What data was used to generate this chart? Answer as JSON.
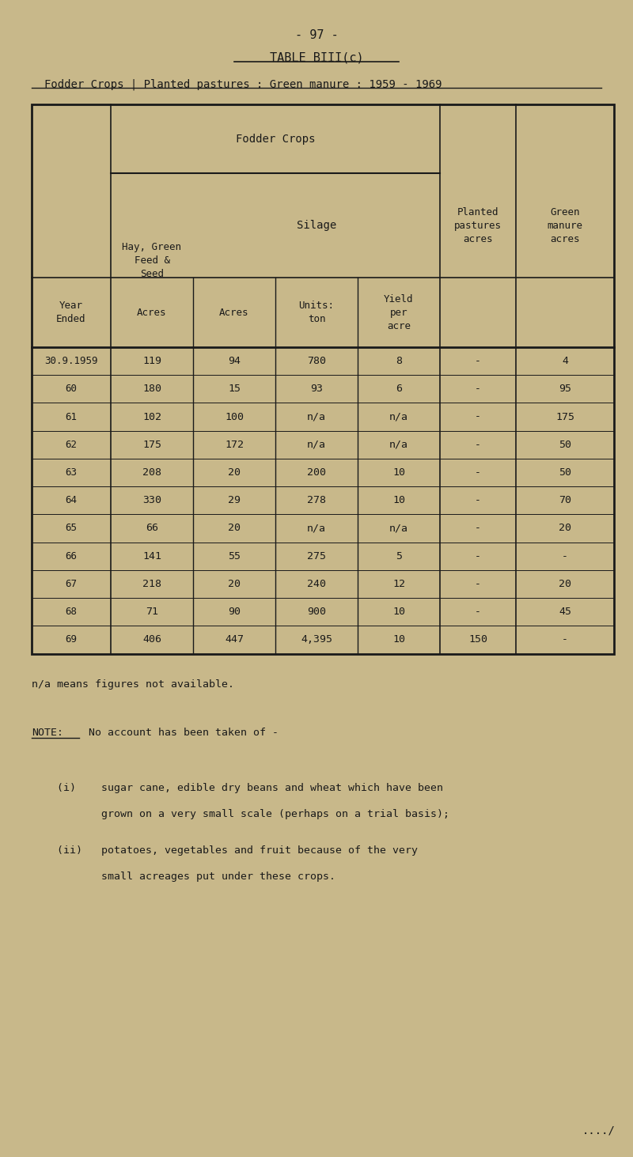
{
  "page_number": "- 97 -",
  "table_title": "TABLE BIII(c)",
  "subtitle": "Fodder Crops | Planted pastures : Green manure : 1959 - 1969",
  "bg_color": "#c8b88a",
  "text_color": "#1a1a1a",
  "rows": [
    [
      "30.9.1959",
      "119",
      "94",
      "780",
      "8",
      "-",
      "4"
    ],
    [
      "60",
      "180",
      "15",
      "93",
      "6",
      "-",
      "95"
    ],
    [
      "61",
      "102",
      "100",
      "n/a",
      "n/a",
      "-",
      "175"
    ],
    [
      "62",
      "175",
      "172",
      "n/a",
      "n/a",
      "-",
      "50"
    ],
    [
      "63",
      "208",
      "20",
      "200",
      "10",
      "-",
      "50"
    ],
    [
      "64",
      "330",
      "29",
      "278",
      "10",
      "-",
      "70"
    ],
    [
      "65",
      "66",
      "20",
      "n/a",
      "n/a",
      "-",
      "20"
    ],
    [
      "66",
      "141",
      "55",
      "275",
      "5",
      "-",
      "-"
    ],
    [
      "67",
      "218",
      "20",
      "240",
      "12",
      "-",
      "20"
    ],
    [
      "68",
      "71",
      "90",
      "900",
      "10",
      "-",
      "45"
    ],
    [
      "69",
      "406",
      "447",
      "4,395",
      "10",
      "150",
      "-"
    ]
  ],
  "footnote1": "n/a means figures not available.",
  "footnote2_label": "NOTE:",
  "footnote2_text": "No account has been taken of -",
  "footnote3_i_line1": "(i)    sugar cane, edible dry beans and wheat which have been",
  "footnote3_i_line2": "       grown on a very small scale (perhaps on a trial basis);",
  "footnote3_ii_line1": "(ii)   potatoes, vegetables and fruit because of the very",
  "footnote3_ii_line2": "       small acreages put under these crops.",
  "page_end": "..../"
}
